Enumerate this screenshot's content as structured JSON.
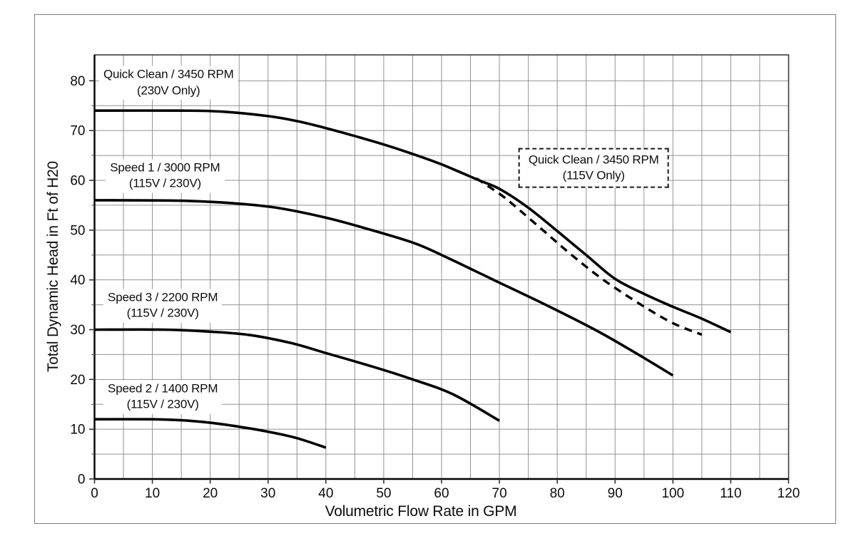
{
  "chart_data": {
    "type": "line",
    "title": "",
    "xlabel": "Volumetric Flow Rate in GPM",
    "ylabel": "Total Dynamic Head in Ft of H20",
    "xlim": [
      0,
      120
    ],
    "ylim": [
      0,
      85.2
    ],
    "x_ticks": [
      0,
      10,
      20,
      30,
      40,
      50,
      60,
      70,
      80,
      90,
      100,
      110,
      120
    ],
    "y_ticks": [
      0,
      10,
      20,
      30,
      40,
      50,
      60,
      70,
      80
    ],
    "grid": true,
    "grid_step": 5,
    "legend_position": "inline-labels",
    "colors": {
      "curve": "#000000",
      "grid": "#929292",
      "frame": "#3c3c3c",
      "text": "#0d0d0d"
    },
    "series": [
      {
        "name": "Quick Clean / 3450 RPM (230V Only)",
        "line_style": "solid",
        "points": [
          [
            0,
            74
          ],
          [
            15,
            74
          ],
          [
            22,
            73.8
          ],
          [
            30,
            72.9
          ],
          [
            35,
            71.9
          ],
          [
            40,
            70.5
          ],
          [
            45,
            68.9
          ],
          [
            50,
            67.2
          ],
          [
            55,
            65.3
          ],
          [
            60,
            63.2
          ],
          [
            66.5,
            60
          ],
          [
            70,
            58.3
          ],
          [
            75,
            54.5
          ],
          [
            80,
            49.8
          ],
          [
            85,
            45
          ],
          [
            90,
            40.2
          ],
          [
            95,
            37.2
          ],
          [
            100,
            34.6
          ],
          [
            105,
            32.2
          ],
          [
            110,
            29.5
          ]
        ]
      },
      {
        "name": "Quick Clean / 3450 RPM (115V Only)",
        "line_style": "dashed",
        "points": [
          [
            66,
            60.4
          ],
          [
            70,
            57.3
          ],
          [
            72.5,
            55
          ],
          [
            77.5,
            50
          ],
          [
            82.5,
            45
          ],
          [
            88,
            40
          ],
          [
            94.5,
            35
          ],
          [
            100,
            31.3
          ],
          [
            105,
            29
          ]
        ]
      },
      {
        "name": "Speed 1 / 3000 RPM (115V / 230V)",
        "line_style": "solid",
        "points": [
          [
            0,
            56
          ],
          [
            15,
            55.9
          ],
          [
            25,
            55.3
          ],
          [
            32,
            54.4
          ],
          [
            40,
            52.5
          ],
          [
            47,
            50.3
          ],
          [
            55,
            47.5
          ],
          [
            60,
            45
          ],
          [
            69,
            40
          ],
          [
            78,
            35
          ],
          [
            86.5,
            30
          ],
          [
            93,
            25.7
          ],
          [
            100,
            20.8
          ]
        ]
      },
      {
        "name": "Speed 3 / 2200 RPM (115V / 230V)",
        "line_style": "solid",
        "points": [
          [
            0,
            30
          ],
          [
            12,
            30
          ],
          [
            20,
            29.6
          ],
          [
            27,
            28.9
          ],
          [
            34,
            27.3
          ],
          [
            40,
            25.3
          ],
          [
            48,
            22.6
          ],
          [
            55,
            20
          ],
          [
            62,
            17
          ],
          [
            70,
            11.7
          ]
        ]
      },
      {
        "name": "Speed 2 / 1400 RPM (115V / 230V)",
        "line_style": "solid",
        "points": [
          [
            0,
            12
          ],
          [
            10,
            12
          ],
          [
            15,
            11.8
          ],
          [
            20,
            11.3
          ],
          [
            25,
            10.5
          ],
          [
            30,
            9.5
          ],
          [
            35,
            8.2
          ],
          [
            40,
            6.3
          ]
        ]
      }
    ],
    "annotations": [
      {
        "line1": "Quick Clean / 3450 RPM",
        "line2": "(230V Only)",
        "x_gpm": 12.8,
        "y_ft": 79.6,
        "boxed": false
      },
      {
        "line1": "Speed 1 / 3000 RPM",
        "line2": "(115V / 230V)",
        "x_gpm": 12.2,
        "y_ft": 60.9,
        "boxed": false
      },
      {
        "line1": "Speed 3 / 2200 RPM",
        "line2": "(115V / 230V)",
        "x_gpm": 11.8,
        "y_ft": 34.8,
        "boxed": false
      },
      {
        "line1": "Speed 2 / 1400 RPM",
        "line2": "(115V / 230V)",
        "x_gpm": 11.8,
        "y_ft": 16.5,
        "boxed": false
      },
      {
        "line1": "Quick Clean / 3450 RPM",
        "line2": "(115V Only)",
        "x_gpm": 86.3,
        "y_ft": 62.5,
        "boxed": true
      }
    ]
  }
}
